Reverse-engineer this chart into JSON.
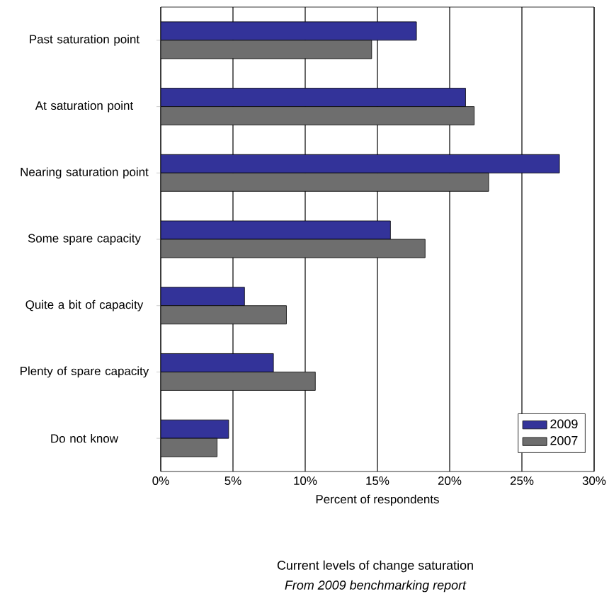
{
  "chart_data": {
    "type": "bar",
    "orientation": "horizontal",
    "title": "Current levels of change saturation",
    "xlabel": "Percent of respondents",
    "annotations": [
      "From 2009 benchmarking report"
    ],
    "categories": [
      "Past saturation point",
      "At saturation point",
      "Nearing saturation point",
      "Some spare capacity",
      "Quite a bit of capacity",
      "Plenty of spare capacity",
      "Do not know"
    ],
    "series": [
      {
        "name": "2009",
        "color": "#333399",
        "values": [
          17.7,
          21.1,
          27.6,
          15.9,
          5.8,
          7.8,
          4.7
        ]
      },
      {
        "name": "2007",
        "color": "#6e6e6e",
        "values": [
          14.6,
          21.7,
          22.7,
          18.3,
          8.7,
          10.7,
          3.9
        ]
      }
    ],
    "xlim": [
      0,
      30
    ],
    "xticks": [
      {
        "value": 0,
        "label": "0%"
      },
      {
        "value": 5,
        "label": "5%"
      },
      {
        "value": 10,
        "label": "10%"
      },
      {
        "value": 15,
        "label": "15%"
      },
      {
        "value": 20,
        "label": "20%"
      },
      {
        "value": 25,
        "label": "25%"
      },
      {
        "value": 30,
        "label": "30%"
      }
    ],
    "grid": "x",
    "legend": "bottom right"
  }
}
